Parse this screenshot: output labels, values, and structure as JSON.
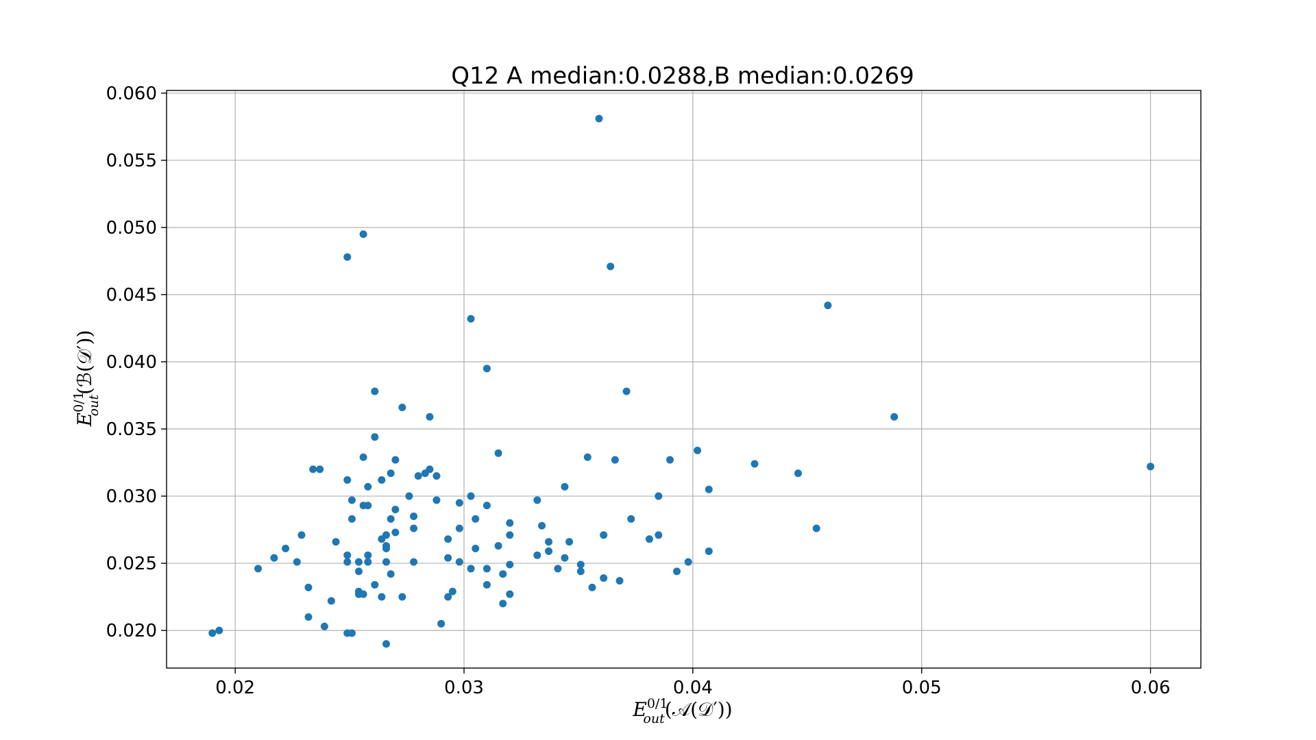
{
  "chart_data": {
    "type": "scatter",
    "title": "Q12 A median:0.0288,B median:0.0269",
    "xlabel": {
      "base": "E",
      "sup": "0/1",
      "sub": "out",
      "rest": "(𝒜(𝒟′))"
    },
    "ylabel": {
      "base": "E",
      "sup": "0/1",
      "sub": "out",
      "rest": "(ℬ(𝒟′))"
    },
    "xlim": [
      0.017,
      0.0622
    ],
    "ylim": [
      0.0172,
      0.0602
    ],
    "xticks": [
      "0.02",
      "0.03",
      "0.04",
      "0.05",
      "0.06"
    ],
    "yticks": [
      "0.020",
      "0.025",
      "0.030",
      "0.035",
      "0.040",
      "0.045",
      "0.050",
      "0.055",
      "0.060"
    ],
    "grid": true,
    "color": "#1f77b4",
    "points": [
      [
        0.0359,
        0.0581
      ],
      [
        0.0256,
        0.0495
      ],
      [
        0.0249,
        0.0478
      ],
      [
        0.0364,
        0.0471
      ],
      [
        0.0459,
        0.0442
      ],
      [
        0.0303,
        0.0432
      ],
      [
        0.031,
        0.0395
      ],
      [
        0.0261,
        0.0378
      ],
      [
        0.0371,
        0.0378
      ],
      [
        0.0273,
        0.0366
      ],
      [
        0.0285,
        0.0359
      ],
      [
        0.0488,
        0.0359
      ],
      [
        0.0261,
        0.0344
      ],
      [
        0.0402,
        0.0334
      ],
      [
        0.0315,
        0.0332
      ],
      [
        0.0256,
        0.0329
      ],
      [
        0.0354,
        0.0329
      ],
      [
        0.027,
        0.0327
      ],
      [
        0.0366,
        0.0327
      ],
      [
        0.039,
        0.0327
      ],
      [
        0.0427,
        0.0324
      ],
      [
        0.06,
        0.0322
      ],
      [
        0.0234,
        0.032
      ],
      [
        0.0237,
        0.032
      ],
      [
        0.0285,
        0.032
      ],
      [
        0.0268,
        0.0317
      ],
      [
        0.0446,
        0.0317
      ],
      [
        0.0283,
        0.0317
      ],
      [
        0.028,
        0.0315
      ],
      [
        0.0288,
        0.0315
      ],
      [
        0.0249,
        0.0312
      ],
      [
        0.0264,
        0.0312
      ],
      [
        0.0258,
        0.0307
      ],
      [
        0.0344,
        0.0307
      ],
      [
        0.0407,
        0.0305
      ],
      [
        0.0276,
        0.03
      ],
      [
        0.0303,
        0.03
      ],
      [
        0.0385,
        0.03
      ],
      [
        0.0251,
        0.0297
      ],
      [
        0.0288,
        0.0297
      ],
      [
        0.0332,
        0.0297
      ],
      [
        0.0298,
        0.0295
      ],
      [
        0.0256,
        0.0293
      ],
      [
        0.0258,
        0.0293
      ],
      [
        0.031,
        0.0293
      ],
      [
        0.027,
        0.029
      ],
      [
        0.0278,
        0.0285
      ],
      [
        0.0251,
        0.0283
      ],
      [
        0.0268,
        0.0283
      ],
      [
        0.0305,
        0.0283
      ],
      [
        0.0373,
        0.0283
      ],
      [
        0.032,
        0.028
      ],
      [
        0.0334,
        0.0278
      ],
      [
        0.0278,
        0.0276
      ],
      [
        0.0298,
        0.0276
      ],
      [
        0.0454,
        0.0276
      ],
      [
        0.027,
        0.0273
      ],
      [
        0.0229,
        0.0271
      ],
      [
        0.0266,
        0.0271
      ],
      [
        0.032,
        0.0271
      ],
      [
        0.0361,
        0.0271
      ],
      [
        0.0385,
        0.0271
      ],
      [
        0.0264,
        0.0268
      ],
      [
        0.0293,
        0.0268
      ],
      [
        0.0381,
        0.0268
      ],
      [
        0.0244,
        0.0266
      ],
      [
        0.0337,
        0.0266
      ],
      [
        0.0346,
        0.0266
      ],
      [
        0.0266,
        0.0263
      ],
      [
        0.0315,
        0.0263
      ],
      [
        0.0222,
        0.0261
      ],
      [
        0.0266,
        0.0261
      ],
      [
        0.0305,
        0.0261
      ],
      [
        0.0337,
        0.0259
      ],
      [
        0.0407,
        0.0259
      ],
      [
        0.0249,
        0.0256
      ],
      [
        0.0258,
        0.0256
      ],
      [
        0.0332,
        0.0256
      ],
      [
        0.0217,
        0.0254
      ],
      [
        0.0293,
        0.0254
      ],
      [
        0.0344,
        0.0254
      ],
      [
        0.0227,
        0.0251
      ],
      [
        0.0249,
        0.0251
      ],
      [
        0.0254,
        0.0251
      ],
      [
        0.0258,
        0.0251
      ],
      [
        0.0266,
        0.0251
      ],
      [
        0.0278,
        0.0251
      ],
      [
        0.0298,
        0.0251
      ],
      [
        0.0398,
        0.0251
      ],
      [
        0.032,
        0.0249
      ],
      [
        0.0351,
        0.0249
      ],
      [
        0.021,
        0.0246
      ],
      [
        0.0303,
        0.0246
      ],
      [
        0.031,
        0.0246
      ],
      [
        0.0341,
        0.0246
      ],
      [
        0.0254,
        0.0244
      ],
      [
        0.0351,
        0.0244
      ],
      [
        0.0393,
        0.0244
      ],
      [
        0.0268,
        0.0242
      ],
      [
        0.0317,
        0.0242
      ],
      [
        0.0361,
        0.0239
      ],
      [
        0.0368,
        0.0237
      ],
      [
        0.0261,
        0.0234
      ],
      [
        0.031,
        0.0234
      ],
      [
        0.0232,
        0.0232
      ],
      [
        0.0356,
        0.0232
      ],
      [
        0.0254,
        0.0229
      ],
      [
        0.0295,
        0.0229
      ],
      [
        0.0254,
        0.0227
      ],
      [
        0.0256,
        0.0227
      ],
      [
        0.032,
        0.0227
      ],
      [
        0.0264,
        0.0225
      ],
      [
        0.0273,
        0.0225
      ],
      [
        0.0293,
        0.0225
      ],
      [
        0.0242,
        0.0222
      ],
      [
        0.0317,
        0.022
      ],
      [
        0.0232,
        0.021
      ],
      [
        0.029,
        0.0205
      ],
      [
        0.0239,
        0.0203
      ],
      [
        0.0193,
        0.02
      ],
      [
        0.019,
        0.0198
      ],
      [
        0.0249,
        0.0198
      ],
      [
        0.0251,
        0.0198
      ],
      [
        0.0266,
        0.019
      ]
    ]
  }
}
